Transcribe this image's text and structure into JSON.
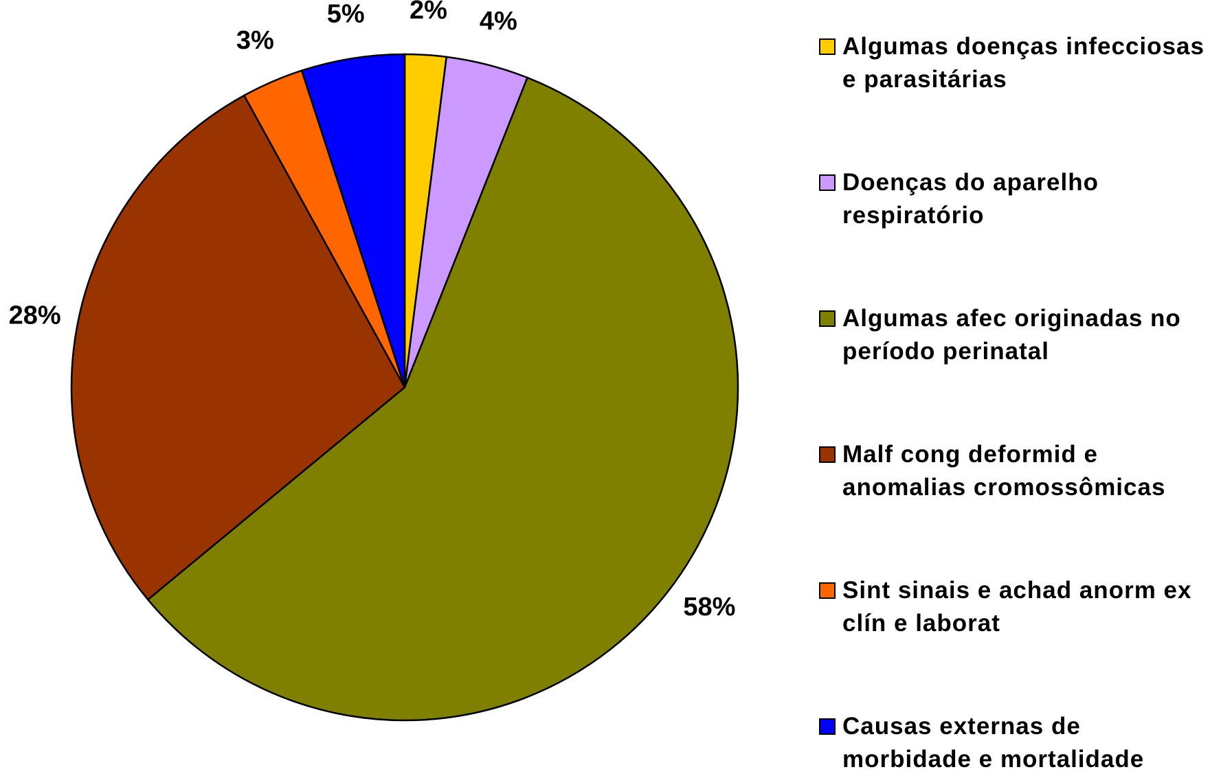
{
  "chart_data": {
    "type": "pie",
    "categories": [
      "Algumas doenças infecciosas e parasitárias",
      "Doenças do aparelho respiratório",
      "Algumas afec originadas no período perinatal",
      "Malf cong deformid e anomalias cromossômicas",
      "Sint sinais e achad anorm ex clín e laborat",
      "Causas externas de morbidade e mortalidade"
    ],
    "values": [
      2,
      4,
      58,
      28,
      3,
      5
    ],
    "value_labels": [
      "2%",
      "4%",
      "58%",
      "28%",
      "3%",
      "5%"
    ],
    "colors": [
      "#FFCC00",
      "#CC99FF",
      "#808000",
      "#993300",
      "#FF6600",
      "#0000FF"
    ],
    "legend": "right"
  }
}
